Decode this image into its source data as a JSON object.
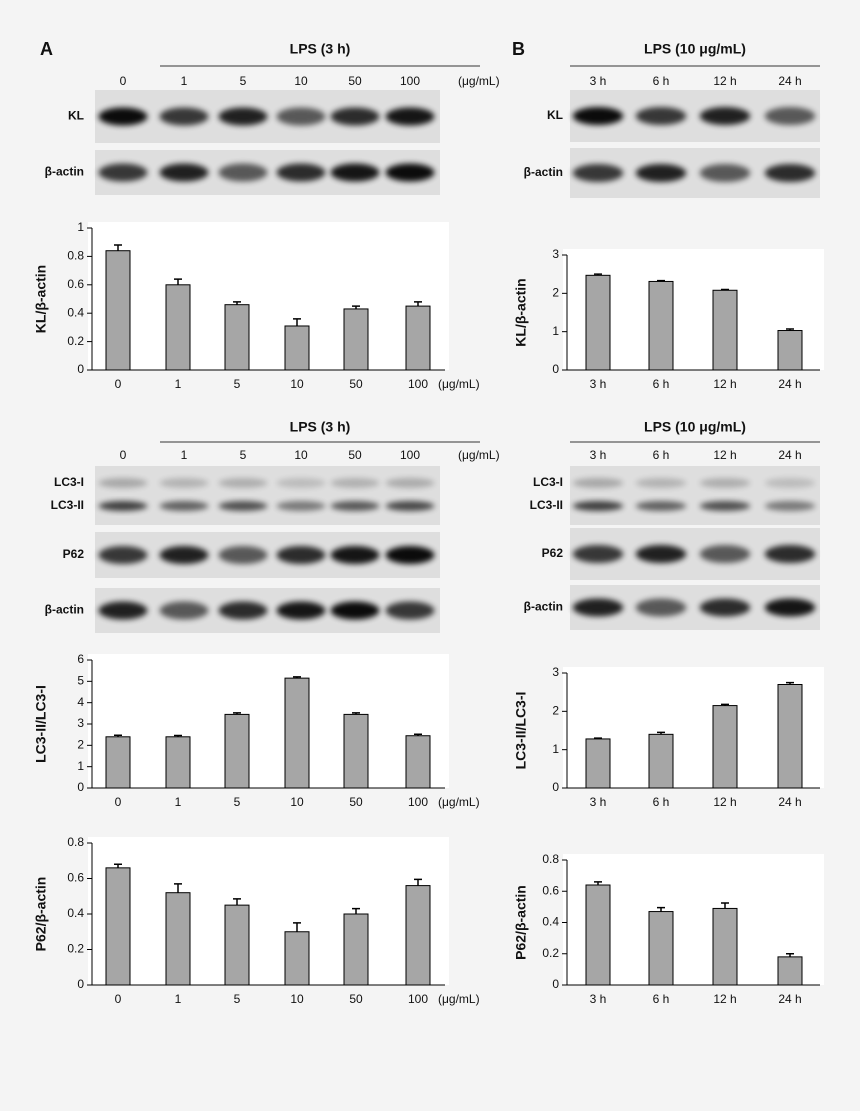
{
  "panel_labels": [
    "A",
    "B"
  ],
  "blots": [
    {
      "header": "LPS (3 h)",
      "lanes": [
        "0",
        "1",
        "5",
        "10",
        "50",
        "100"
      ],
      "unit": "(μg/mL)",
      "strips": [
        [
          "KL"
        ],
        [
          "β-actin"
        ]
      ]
    },
    {
      "header": "LPS (3 h)",
      "lanes": [
        "0",
        "1",
        "5",
        "10",
        "50",
        "100"
      ],
      "unit": "(μg/mL)",
      "strips": [
        [
          "LC3-I",
          "LC3-II"
        ],
        [
          "P62"
        ],
        [
          "β-actin"
        ]
      ]
    },
    {
      "header": "LPS (10 μg/mL)",
      "lanes": [
        "3 h",
        "6 h",
        "12 h",
        "24 h"
      ],
      "strips": [
        [
          "KL"
        ],
        [
          "β-actin"
        ]
      ]
    },
    {
      "header": "LPS (10 μg/mL)",
      "lanes": [
        "3 h",
        "6 h",
        "12 h",
        "24 h"
      ],
      "strips": [
        [
          "LC3-I",
          "LC3-II"
        ],
        [
          "P62"
        ],
        [
          "β-actin"
        ]
      ]
    }
  ],
  "chart_data": [
    {
      "type": "bar",
      "y_label": "KL/β-actin",
      "categories": [
        "0",
        "1",
        "5",
        "10",
        "50",
        "100"
      ],
      "x_unit": "(μg/mL)",
      "values": [
        0.84,
        0.6,
        0.46,
        0.31,
        0.43,
        0.45
      ],
      "errors": [
        0.04,
        0.04,
        0.02,
        0.05,
        0.02,
        0.03
      ],
      "color": "#a6a6a6",
      "ylim": [
        0,
        1
      ],
      "yticks": [
        0,
        0.2,
        0.4,
        0.6,
        0.8,
        1
      ]
    },
    {
      "type": "bar",
      "y_label": "LC3-II/LC3-I",
      "categories": [
        "0",
        "1",
        "5",
        "10",
        "50",
        "100"
      ],
      "x_unit": "(μg/mL)",
      "values": [
        2.4,
        2.4,
        3.45,
        5.15,
        3.45,
        2.45
      ],
      "errors": [
        0.07,
        0.06,
        0.07,
        0.06,
        0.07,
        0.07
      ],
      "color": "#a6a6a6",
      "ylim": [
        0,
        6
      ],
      "yticks": [
        0,
        1,
        2,
        3,
        4,
        5,
        6
      ]
    },
    {
      "type": "bar",
      "y_label": "P62/β-actin",
      "categories": [
        "0",
        "1",
        "5",
        "10",
        "50",
        "100"
      ],
      "x_unit": "(μg/mL)",
      "values": [
        0.66,
        0.52,
        0.45,
        0.3,
        0.4,
        0.56
      ],
      "errors": [
        0.02,
        0.05,
        0.035,
        0.05,
        0.03,
        0.035
      ],
      "color": "#a6a6a6",
      "ylim": [
        0,
        0.8
      ],
      "yticks": [
        0,
        0.2,
        0.4,
        0.6,
        0.8
      ]
    },
    {
      "type": "bar",
      "y_label": "KL/β-actin",
      "categories": [
        "3 h",
        "6 h",
        "12 h",
        "24 h"
      ],
      "values": [
        2.47,
        2.31,
        2.08,
        1.03
      ],
      "errors": [
        0.03,
        0.02,
        0.02,
        0.04
      ],
      "color": "#a6a6a6",
      "ylim": [
        0,
        3
      ],
      "yticks": [
        0,
        1,
        2,
        3
      ]
    },
    {
      "type": "bar",
      "y_label": "LC3-II/LC3-I",
      "categories": [
        "3 h",
        "6 h",
        "12 h",
        "24 h"
      ],
      "values": [
        1.28,
        1.4,
        2.15,
        2.7
      ],
      "errors": [
        0.02,
        0.05,
        0.03,
        0.05
      ],
      "color": "#a6a6a6",
      "ylim": [
        0,
        3
      ],
      "yticks": [
        0,
        1,
        2,
        3
      ]
    },
    {
      "type": "bar",
      "y_label": "P62/β-actin",
      "categories": [
        "3 h",
        "6 h",
        "12 h",
        "24 h"
      ],
      "values": [
        0.64,
        0.47,
        0.49,
        0.18
      ],
      "errors": [
        0.02,
        0.025,
        0.035,
        0.02
      ],
      "color": "#a6a6a6",
      "ylim": [
        0,
        0.8
      ],
      "yticks": [
        0,
        0.2,
        0.4,
        0.6,
        0.8
      ]
    }
  ]
}
